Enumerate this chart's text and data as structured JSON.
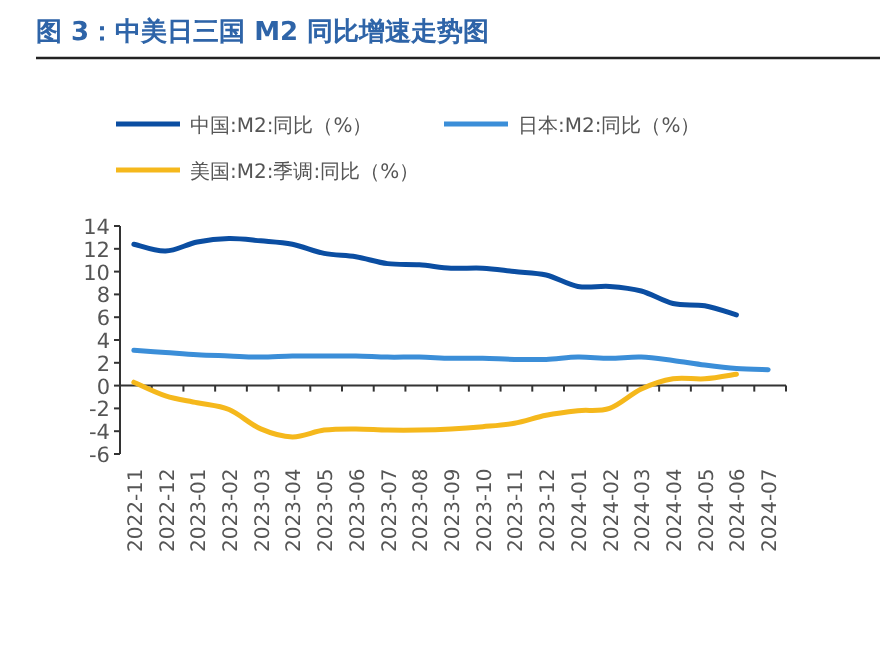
{
  "chart_data": {
    "type": "line",
    "title": "图 3：中美日三国 M2 同比增速走势图",
    "categories": [
      "2022-11",
      "2022-12",
      "2023-01",
      "2023-02",
      "2023-03",
      "2023-04",
      "2023-05",
      "2023-06",
      "2023-07",
      "2023-08",
      "2023-09",
      "2023-10",
      "2023-11",
      "2023-12",
      "2024-01",
      "2024-02",
      "2024-03",
      "2024-04",
      "2024-05",
      "2024-06",
      "2024-07"
    ],
    "series": [
      {
        "name": "中国:M2:同比（%）",
        "color": "#0b4ea2",
        "values": [
          12.4,
          11.8,
          12.6,
          12.9,
          12.7,
          12.4,
          11.6,
          11.3,
          10.7,
          10.6,
          10.3,
          10.3,
          10.0,
          9.7,
          8.7,
          8.7,
          8.3,
          7.2,
          7.0,
          6.2,
          null
        ]
      },
      {
        "name": "日本:M2:同比（%）",
        "color": "#3b8ed8",
        "values": [
          3.1,
          2.9,
          2.7,
          2.6,
          2.5,
          2.6,
          2.6,
          2.6,
          2.5,
          2.5,
          2.4,
          2.4,
          2.3,
          2.3,
          2.5,
          2.4,
          2.5,
          2.2,
          1.8,
          1.5,
          1.4
        ]
      },
      {
        "name": "美国:M2:季调:同比（%）",
        "color": "#f5b81c",
        "values": [
          0.3,
          -0.9,
          -1.5,
          -2.1,
          -3.8,
          -4.5,
          -3.9,
          -3.8,
          -3.9,
          -3.9,
          -3.8,
          -3.6,
          -3.3,
          -2.6,
          -2.2,
          -2.0,
          -0.3,
          0.6,
          0.6,
          1.0,
          null
        ]
      }
    ],
    "ylim": [
      -6,
      14
    ],
    "yticks": [
      -6,
      -4,
      -2,
      0,
      2,
      4,
      6,
      8,
      10,
      12,
      14
    ],
    "legend": "top",
    "line_style": "solid",
    "marker": "none"
  }
}
